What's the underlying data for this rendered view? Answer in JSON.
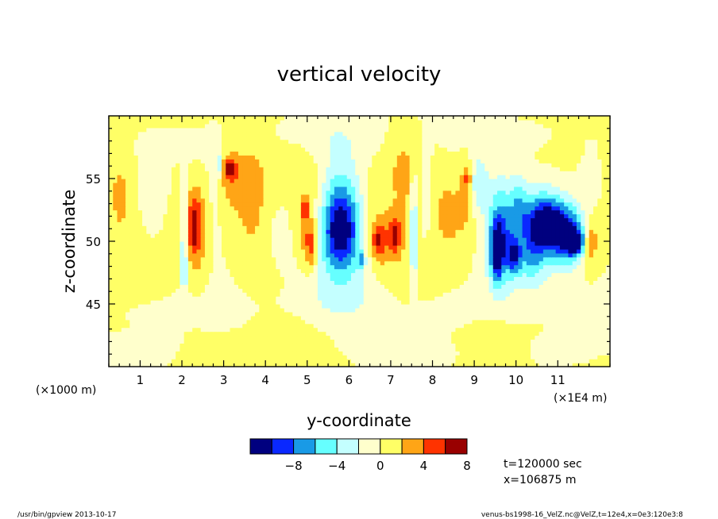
{
  "chart_data": {
    "type": "heatmap",
    "title": "vertical velocity",
    "xlabel": "y-coordinate",
    "ylabel": "z-coordinate",
    "x_scale_note": "(×1000 m)",
    "x_unit_note": "(×1E4 m)",
    "xlim": [
      0.25,
      12.25
    ],
    "ylim": [
      40,
      60
    ],
    "x_ticks": [
      1,
      2,
      3,
      4,
      5,
      6,
      7,
      8,
      9,
      10,
      11
    ],
    "x_tick_labels": [
      "1",
      "2",
      "3",
      "4",
      "5",
      "6",
      "7",
      "8",
      "9",
      "10",
      "11"
    ],
    "y_ticks": [
      45,
      50,
      55
    ],
    "y_tick_labels": [
      "45",
      "50",
      "55"
    ],
    "colorbar": {
      "levels": [
        -12,
        -10,
        -8,
        -6,
        -4,
        -2,
        0,
        2,
        4,
        6,
        8,
        10
      ],
      "tick_values": [
        -8,
        -4,
        0,
        4,
        8
      ],
      "tick_labels": [
        "−8",
        "−4",
        "0",
        "4",
        "8"
      ],
      "colors": [
        "#00007f",
        "#0a28ff",
        "#199ae6",
        "#66ffff",
        "#c4ffff",
        "#ffffcc",
        "#ffff66",
        "#ffa516",
        "#ff3300",
        "#990000"
      ]
    },
    "features": [
      {
        "y": 0.55,
        "z": 53.5,
        "value": 2.5,
        "sy": 0.28,
        "sz": 3.5
      },
      {
        "y": 1.4,
        "z": 54.5,
        "value": -1.3,
        "sy": 0.5,
        "sz": 1.5
      },
      {
        "y": 1.0,
        "z": 57.5,
        "value": -1.2,
        "sy": 1.3,
        "sz": 1.2
      },
      {
        "y": 2.05,
        "z": 50.8,
        "value": -5.5,
        "sy": 0.07,
        "sz": 2.5
      },
      {
        "y": 2.05,
        "z": 47.6,
        "value": -4.5,
        "sy": 0.05,
        "sz": 0.8
      },
      {
        "y": 1.9,
        "z": 53.0,
        "value": 2.2,
        "sy": 0.15,
        "sz": 2.5
      },
      {
        "y": 2.28,
        "z": 51.2,
        "value": 5.0,
        "sy": 0.12,
        "sz": 1.6
      },
      {
        "y": 2.4,
        "z": 51.0,
        "value": 2.5,
        "sy": 0.25,
        "sz": 3.5
      },
      {
        "y": 2.75,
        "z": 53.5,
        "value": -2.0,
        "sy": 0.15,
        "sz": 4.0
      },
      {
        "y": 2.9,
        "z": 56.0,
        "value": -4.5,
        "sy": 0.05,
        "sz": 0.6
      },
      {
        "y": 3.15,
        "z": 55.8,
        "value": 5.0,
        "sy": 0.12,
        "sz": 0.6
      },
      {
        "y": 3.25,
        "z": 55.0,
        "value": 2.5,
        "sy": 0.35,
        "sz": 2.0
      },
      {
        "y": 3.7,
        "z": 52.0,
        "value": 2.3,
        "sy": 0.25,
        "sz": 3.0
      },
      {
        "y": 4.6,
        "z": 50.5,
        "value": -1.4,
        "sy": 0.25,
        "sz": 2.0
      },
      {
        "y": 4.95,
        "z": 50.5,
        "value": 2.5,
        "sy": 0.25,
        "sz": 1.5
      },
      {
        "y": 5.1,
        "z": 49.5,
        "value": 4.5,
        "sy": 0.1,
        "sz": 1.2
      },
      {
        "y": 5.1,
        "z": 53.0,
        "value": 2.2,
        "sy": 0.35,
        "sz": 2.5
      },
      {
        "y": 4.95,
        "z": 52.5,
        "value": 4.5,
        "sy": 0.06,
        "sz": 0.6
      },
      {
        "y": 5.8,
        "z": 51.0,
        "value": -8.5,
        "sy": 0.35,
        "sz": 2.4
      },
      {
        "y": 5.75,
        "z": 53.5,
        "value": -2.5,
        "sy": 0.4,
        "sz": 3.5
      },
      {
        "y": 5.9,
        "z": 50.5,
        "value": -3.5,
        "sy": 0.55,
        "sz": 3.0
      },
      {
        "y": 6.45,
        "z": 52.0,
        "value": 2.0,
        "sy": 0.3,
        "sz": 2.5
      },
      {
        "y": 6.3,
        "z": 48.5,
        "value": -4.5,
        "sy": 0.05,
        "sz": 0.5
      },
      {
        "y": 6.7,
        "z": 50.0,
        "value": 4.5,
        "sy": 0.12,
        "sz": 1.0
      },
      {
        "y": 7.1,
        "z": 50.5,
        "value": 4.5,
        "sy": 0.1,
        "sz": 1.0
      },
      {
        "y": 6.9,
        "z": 50.3,
        "value": 2.4,
        "sy": 0.3,
        "sz": 1.6
      },
      {
        "y": 7.3,
        "z": 55.0,
        "value": 2.2,
        "sy": 0.25,
        "sz": 3.0
      },
      {
        "y": 7.55,
        "z": 50.5,
        "value": -5.5,
        "sy": 0.06,
        "sz": 3.5
      },
      {
        "y": 7.85,
        "z": 54.0,
        "value": -2.0,
        "sy": 0.1,
        "sz": 3.0
      },
      {
        "y": 8.35,
        "z": 52.5,
        "value": 2.2,
        "sy": 0.35,
        "sz": 2.5
      },
      {
        "y": 8.8,
        "z": 54.5,
        "value": 2.5,
        "sy": 0.12,
        "sz": 2.0
      },
      {
        "y": 8.85,
        "z": 55.0,
        "value": 4.5,
        "sy": 0.04,
        "sz": 0.4
      },
      {
        "y": 9.1,
        "z": 54.5,
        "value": -3.5,
        "sy": 0.15,
        "sz": 1.5
      },
      {
        "y": 9.55,
        "z": 49.0,
        "value": -8.0,
        "sy": 0.1,
        "sz": 1.5
      },
      {
        "y": 9.6,
        "z": 50.8,
        "value": -5.5,
        "sy": 0.2,
        "sz": 2.5
      },
      {
        "y": 9.8,
        "z": 50.0,
        "value": -3.5,
        "sy": 0.45,
        "sz": 3.0
      },
      {
        "y": 9.95,
        "z": 48.8,
        "value": -6.5,
        "sy": 0.12,
        "sz": 1.0
      },
      {
        "y": 10.05,
        "z": 53.0,
        "value": -3.0,
        "sy": 0.15,
        "sz": 1.5
      },
      {
        "y": 10.4,
        "z": 48.5,
        "value": -3.0,
        "sy": 0.2,
        "sz": 1.5
      },
      {
        "y": 10.95,
        "z": 51.5,
        "value": -8.5,
        "sy": 0.4,
        "sz": 1.2
      },
      {
        "y": 10.6,
        "z": 51.0,
        "value": -5.0,
        "sy": 0.3,
        "sz": 2.0
      },
      {
        "y": 11.2,
        "z": 49.5,
        "value": -4.5,
        "sy": 0.25,
        "sz": 1.2
      },
      {
        "y": 10.8,
        "z": 51.5,
        "value": -2.0,
        "sy": 0.6,
        "sz": 3.0
      },
      {
        "y": 11.45,
        "z": 50.0,
        "value": -9.0,
        "sy": 0.2,
        "sz": 0.8
      },
      {
        "y": 11.75,
        "z": 50.0,
        "value": 4.5,
        "sy": 0.1,
        "sz": 0.8
      },
      {
        "y": 11.8,
        "z": 50.0,
        "value": 2.2,
        "sy": 0.18,
        "sz": 2.0
      },
      {
        "y": 11.85,
        "z": 54.5,
        "value": -1.4,
        "sy": 0.25,
        "sz": 1.8
      },
      {
        "y": 12.2,
        "z": 55.5,
        "value": 1.5,
        "sy": 0.12,
        "sz": 2.0
      },
      {
        "y": 1.0,
        "z": 44.5,
        "value": -1.2,
        "sy": 0.7,
        "sz": 0.9
      },
      {
        "y": 2.8,
        "z": 44.5,
        "value": -1.3,
        "sy": 0.8,
        "sz": 1.2
      },
      {
        "y": 6.0,
        "z": 45.0,
        "value": -1.4,
        "sy": 1.1,
        "sz": 1.3
      },
      {
        "y": 8.6,
        "z": 44.5,
        "value": -1.3,
        "sy": 0.8,
        "sz": 1.2
      },
      {
        "y": 11.0,
        "z": 45.0,
        "value": -1.3,
        "sy": 0.8,
        "sz": 1.2
      },
      {
        "y": 5.0,
        "z": 58.5,
        "value": -1.2,
        "sy": 1.4,
        "sz": 1.2
      },
      {
        "y": 10.0,
        "z": 58.5,
        "value": -1.2,
        "sy": 1.2,
        "sz": 1.2
      },
      {
        "y": 1.2,
        "z": 41.5,
        "value": -1.3,
        "sy": 0.9,
        "sz": 1.2
      },
      {
        "y": 7.5,
        "z": 41.2,
        "value": -1.3,
        "sy": 1.2,
        "sz": 1.0
      },
      {
        "y": 11.5,
        "z": 41.5,
        "value": -1.2,
        "sy": 0.8,
        "sz": 1.0
      },
      {
        "y": 4.5,
        "z": 42.5,
        "value": 1.2,
        "sy": 0.6,
        "sz": 1.2
      },
      {
        "y": 9.3,
        "z": 42.5,
        "value": 1.2,
        "sy": 0.4,
        "sz": 1.0
      }
    ]
  },
  "info": {
    "time": "t=120000 sec",
    "position": "x=106875 m"
  },
  "footer": {
    "left": "/usr/bin/gpview   2013-10-17",
    "right": "venus-bs1998-16_VelZ.nc@VelZ,t=12e4,x=0e3:120e3:8"
  }
}
